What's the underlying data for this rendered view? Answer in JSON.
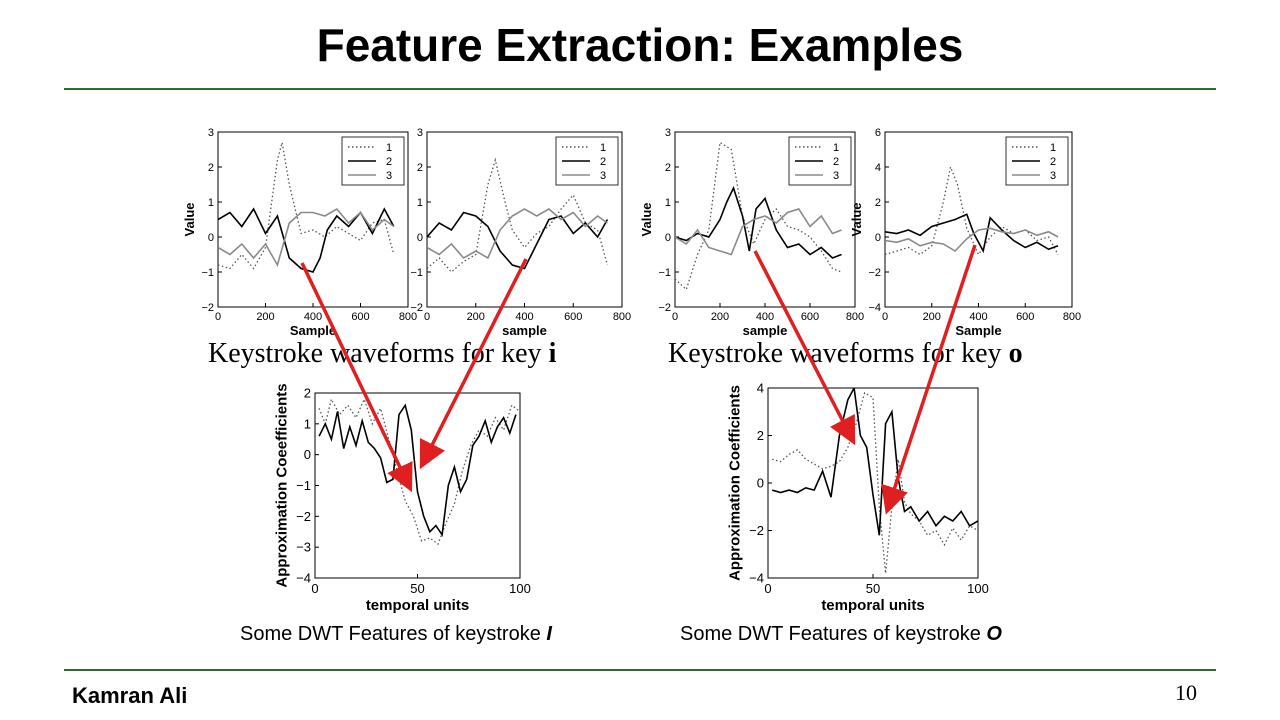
{
  "slide": {
    "title": "Feature Extraction: Examples",
    "author": "Kamran Ali",
    "page_number": "10",
    "rule_color": "#2e6b2e",
    "arrow_color": "#e02020"
  },
  "captions": {
    "wave_i_prefix": "Keystroke waveforms for key",
    "wave_i_key": "i",
    "wave_o_prefix": "Keystroke waveforms for key",
    "wave_o_key": "o",
    "dwt_i_prefix": "Some DWT Features of keystroke",
    "dwt_i_key": "I",
    "dwt_o_prefix": "Some DWT Features of keystroke",
    "dwt_o_key": "O"
  },
  "chart_data": [
    {
      "id": "wave-i-1",
      "type": "line",
      "xlabel": "Sample",
      "ylabel": "Value",
      "xlim": [
        0,
        800
      ],
      "ylim": [
        -2,
        3
      ],
      "xticks": [
        0,
        200,
        400,
        600,
        800
      ],
      "yticks": [
        -2,
        -1,
        0,
        1,
        2,
        3
      ],
      "legend": "top-right",
      "series": [
        {
          "name": "1",
          "style": "dotted",
          "color": "#555555",
          "x": [
            0,
            50,
            100,
            150,
            200,
            250,
            270,
            300,
            350,
            400,
            450,
            500,
            550,
            600,
            650,
            700,
            740
          ],
          "y": [
            -0.8,
            -0.9,
            -0.5,
            -0.9,
            -0.3,
            2.2,
            2.7,
            1.5,
            0.1,
            0.2,
            0.0,
            0.3,
            0.1,
            -0.1,
            0.4,
            0.5,
            -0.5
          ]
        },
        {
          "name": "2",
          "style": "solid",
          "color": "#000000",
          "x": [
            0,
            50,
            100,
            150,
            200,
            250,
            300,
            350,
            400,
            430,
            460,
            500,
            550,
            600,
            650,
            700,
            740
          ],
          "y": [
            0.5,
            0.7,
            0.3,
            0.8,
            0.1,
            0.6,
            -0.6,
            -0.9,
            -1.0,
            -0.6,
            0.2,
            0.6,
            0.3,
            0.7,
            0.1,
            0.8,
            0.3
          ]
        },
        {
          "name": "3",
          "style": "solid",
          "color": "#8a8a8a",
          "x": [
            0,
            50,
            100,
            150,
            200,
            250,
            300,
            350,
            400,
            450,
            500,
            550,
            600,
            650,
            700,
            740
          ],
          "y": [
            -0.3,
            -0.5,
            -0.2,
            -0.6,
            -0.2,
            -0.8,
            0.4,
            0.7,
            0.7,
            0.6,
            0.8,
            0.4,
            0.7,
            0.2,
            0.5,
            0.3
          ]
        }
      ]
    },
    {
      "id": "wave-i-2",
      "type": "line",
      "xlabel": "sample",
      "ylabel": "",
      "xlim": [
        0,
        800
      ],
      "ylim": [
        -2,
        3
      ],
      "xticks": [
        0,
        200,
        400,
        600,
        800
      ],
      "yticks": [
        -2,
        -1,
        0,
        1,
        2,
        3
      ],
      "legend": "top-right",
      "series": [
        {
          "name": "1",
          "style": "dotted",
          "color": "#555555",
          "x": [
            0,
            50,
            100,
            150,
            200,
            250,
            280,
            320,
            350,
            400,
            450,
            500,
            550,
            600,
            650,
            700,
            740
          ],
          "y": [
            -0.9,
            -0.6,
            -1.0,
            -0.7,
            -0.5,
            1.5,
            2.2,
            1.0,
            0.2,
            -0.3,
            0.1,
            0.3,
            0.8,
            1.2,
            0.4,
            0.2,
            -0.8
          ]
        },
        {
          "name": "2",
          "style": "solid",
          "color": "#000000",
          "x": [
            0,
            50,
            100,
            150,
            200,
            250,
            300,
            350,
            400,
            450,
            500,
            550,
            600,
            650,
            700,
            740
          ],
          "y": [
            0.0,
            0.4,
            0.2,
            0.7,
            0.6,
            0.3,
            -0.4,
            -0.8,
            -0.9,
            -0.2,
            0.5,
            0.6,
            0.1,
            0.4,
            0.0,
            0.5
          ]
        },
        {
          "name": "3",
          "style": "solid",
          "color": "#8a8a8a",
          "x": [
            0,
            50,
            100,
            150,
            200,
            250,
            300,
            350,
            400,
            450,
            500,
            550,
            600,
            650,
            700,
            740
          ],
          "y": [
            -0.3,
            -0.5,
            -0.2,
            -0.6,
            -0.4,
            -0.6,
            0.2,
            0.6,
            0.8,
            0.6,
            0.8,
            0.5,
            0.7,
            0.3,
            0.6,
            0.4
          ]
        }
      ]
    },
    {
      "id": "wave-o-1",
      "type": "line",
      "xlabel": "sample",
      "ylabel": "Value",
      "xlim": [
        0,
        800
      ],
      "ylim": [
        -2,
        3
      ],
      "xticks": [
        0,
        200,
        400,
        600,
        800
      ],
      "yticks": [
        -2,
        -1,
        0,
        1,
        2,
        3
      ],
      "legend": "top-right",
      "series": [
        {
          "name": "1",
          "style": "dotted",
          "color": "#555555",
          "x": [
            0,
            50,
            100,
            150,
            200,
            250,
            300,
            350,
            400,
            450,
            500,
            550,
            600,
            650,
            700,
            740
          ],
          "y": [
            -1.2,
            -1.5,
            -0.5,
            0.2,
            2.7,
            2.5,
            0.6,
            -0.2,
            0.5,
            0.8,
            0.3,
            0.2,
            0.0,
            -0.4,
            -0.9,
            -1.0
          ]
        },
        {
          "name": "2",
          "style": "solid",
          "color": "#000000",
          "x": [
            0,
            50,
            100,
            150,
            200,
            230,
            260,
            300,
            330,
            360,
            400,
            450,
            500,
            550,
            600,
            650,
            700,
            740
          ],
          "y": [
            0.0,
            -0.1,
            0.1,
            0.0,
            0.5,
            1.0,
            1.4,
            0.6,
            -0.4,
            0.8,
            1.1,
            0.2,
            -0.3,
            -0.2,
            -0.5,
            -0.3,
            -0.6,
            -0.5
          ]
        },
        {
          "name": "3",
          "style": "solid",
          "color": "#8a8a8a",
          "x": [
            0,
            50,
            100,
            150,
            200,
            250,
            300,
            350,
            400,
            450,
            500,
            550,
            600,
            650,
            700,
            740
          ],
          "y": [
            0.0,
            -0.2,
            0.2,
            -0.3,
            -0.4,
            -0.5,
            0.3,
            0.5,
            0.6,
            0.4,
            0.7,
            0.8,
            0.3,
            0.6,
            0.1,
            0.2
          ]
        }
      ]
    },
    {
      "id": "wave-o-2",
      "type": "line",
      "xlabel": "Sample",
      "ylabel": "Value",
      "xlim": [
        0,
        800
      ],
      "ylim": [
        -4,
        6
      ],
      "xticks": [
        0,
        200,
        400,
        600,
        800
      ],
      "yticks": [
        -4,
        -2,
        0,
        2,
        4,
        6
      ],
      "legend": "top-right",
      "series": [
        {
          "name": "1",
          "style": "dotted",
          "color": "#555555",
          "x": [
            0,
            50,
            100,
            150,
            200,
            250,
            280,
            310,
            350,
            400,
            450,
            500,
            550,
            600,
            650,
            700,
            740
          ],
          "y": [
            -1.0,
            -0.8,
            -0.6,
            -1.0,
            -0.5,
            2.0,
            4.0,
            3.0,
            0.5,
            -1.0,
            0.0,
            0.6,
            0.2,
            0.4,
            -0.2,
            0.0,
            -1.0
          ]
        },
        {
          "name": "2",
          "style": "solid",
          "color": "#000000",
          "x": [
            0,
            50,
            100,
            150,
            200,
            250,
            300,
            350,
            380,
            420,
            450,
            500,
            550,
            600,
            650,
            700,
            740
          ],
          "y": [
            0.3,
            0.2,
            0.4,
            0.1,
            0.6,
            0.8,
            1.0,
            1.3,
            0.2,
            -0.8,
            1.1,
            0.4,
            -0.2,
            -0.6,
            -0.3,
            -0.7,
            -0.5
          ]
        },
        {
          "name": "3",
          "style": "solid",
          "color": "#8a8a8a",
          "x": [
            0,
            50,
            100,
            150,
            200,
            250,
            300,
            350,
            400,
            450,
            500,
            550,
            600,
            650,
            700,
            740
          ],
          "y": [
            -0.2,
            -0.3,
            -0.1,
            -0.5,
            -0.3,
            -0.4,
            -0.8,
            -0.1,
            0.4,
            0.5,
            0.3,
            0.2,
            0.4,
            0.1,
            0.3,
            0.0
          ]
        }
      ]
    },
    {
      "id": "dwt-i",
      "type": "line",
      "xlabel": "temporal units",
      "ylabel": "Approximation Coeefficients",
      "xlim": [
        0,
        100
      ],
      "ylim": [
        -4,
        2
      ],
      "xticks": [
        0,
        50,
        100
      ],
      "yticks": [
        -4,
        -3,
        -2,
        -1,
        0,
        1,
        2
      ],
      "legend": "none",
      "series": [
        {
          "name": "",
          "style": "dotted",
          "color": "#555555",
          "x": [
            2,
            5,
            8,
            12,
            16,
            20,
            24,
            28,
            32,
            36,
            40,
            44,
            48,
            52,
            56,
            60,
            64,
            68,
            72,
            76,
            80,
            84,
            88,
            92,
            96,
            100
          ],
          "y": [
            1.5,
            1.0,
            1.8,
            1.3,
            1.6,
            1.2,
            1.8,
            1.0,
            1.5,
            0.5,
            -0.5,
            -1.5,
            -2.0,
            -2.8,
            -2.7,
            -2.9,
            -2.2,
            -1.6,
            -0.5,
            0.3,
            0.8,
            0.6,
            1.2,
            0.8,
            1.6,
            1.4
          ]
        },
        {
          "name": "",
          "style": "solid",
          "color": "#000000",
          "x": [
            2,
            5,
            8,
            11,
            14,
            17,
            20,
            23,
            26,
            29,
            32,
            35,
            38,
            41,
            44,
            47,
            50,
            53,
            56,
            59,
            62,
            65,
            68,
            71,
            74,
            77,
            80,
            83,
            86,
            89,
            92,
            95,
            98
          ],
          "y": [
            0.6,
            1.0,
            0.5,
            1.4,
            0.2,
            0.9,
            0.3,
            1.1,
            0.4,
            0.2,
            -0.1,
            -0.9,
            -0.8,
            1.3,
            1.6,
            0.8,
            -1.2,
            -2.0,
            -2.5,
            -2.3,
            -2.6,
            -1.0,
            -0.4,
            -1.2,
            -0.8,
            0.3,
            0.6,
            1.1,
            0.4,
            0.9,
            1.2,
            0.7,
            1.3
          ]
        }
      ]
    },
    {
      "id": "dwt-o",
      "type": "line",
      "xlabel": "temporal units",
      "ylabel": "Approximation Coefficients",
      "xlim": [
        0,
        100
      ],
      "ylim": [
        -4,
        4
      ],
      "xticks": [
        0,
        50,
        100
      ],
      "yticks": [
        -4,
        -2,
        0,
        2,
        4
      ],
      "legend": "none",
      "series": [
        {
          "name": "",
          "style": "dotted",
          "color": "#555555",
          "x": [
            2,
            6,
            10,
            14,
            18,
            22,
            26,
            30,
            34,
            38,
            42,
            46,
            50,
            53,
            56,
            59,
            62,
            65,
            68,
            72,
            76,
            80,
            84,
            88,
            92,
            96,
            100
          ],
          "y": [
            1.0,
            0.9,
            1.2,
            1.4,
            1.0,
            0.8,
            0.6,
            0.7,
            0.9,
            1.5,
            2.5,
            3.8,
            3.6,
            -1.0,
            -3.8,
            -1.0,
            1.0,
            -0.8,
            -1.3,
            -1.6,
            -2.2,
            -2.0,
            -2.6,
            -1.9,
            -2.4,
            -1.8,
            -2.0
          ]
        },
        {
          "name": "",
          "style": "solid",
          "color": "#000000",
          "x": [
            2,
            6,
            10,
            14,
            18,
            22,
            26,
            30,
            34,
            38,
            41,
            44,
            47,
            50,
            53,
            56,
            59,
            62,
            65,
            68,
            72,
            76,
            80,
            84,
            88,
            92,
            96,
            100
          ],
          "y": [
            -0.3,
            -0.4,
            -0.3,
            -0.4,
            -0.2,
            -0.3,
            0.5,
            -0.6,
            2.0,
            3.5,
            4.0,
            2.0,
            1.5,
            -0.5,
            -2.2,
            2.5,
            3.0,
            0.2,
            -1.2,
            -1.0,
            -1.6,
            -1.2,
            -1.8,
            -1.4,
            -1.6,
            -1.2,
            -1.8,
            -1.6
          ]
        }
      ]
    }
  ]
}
